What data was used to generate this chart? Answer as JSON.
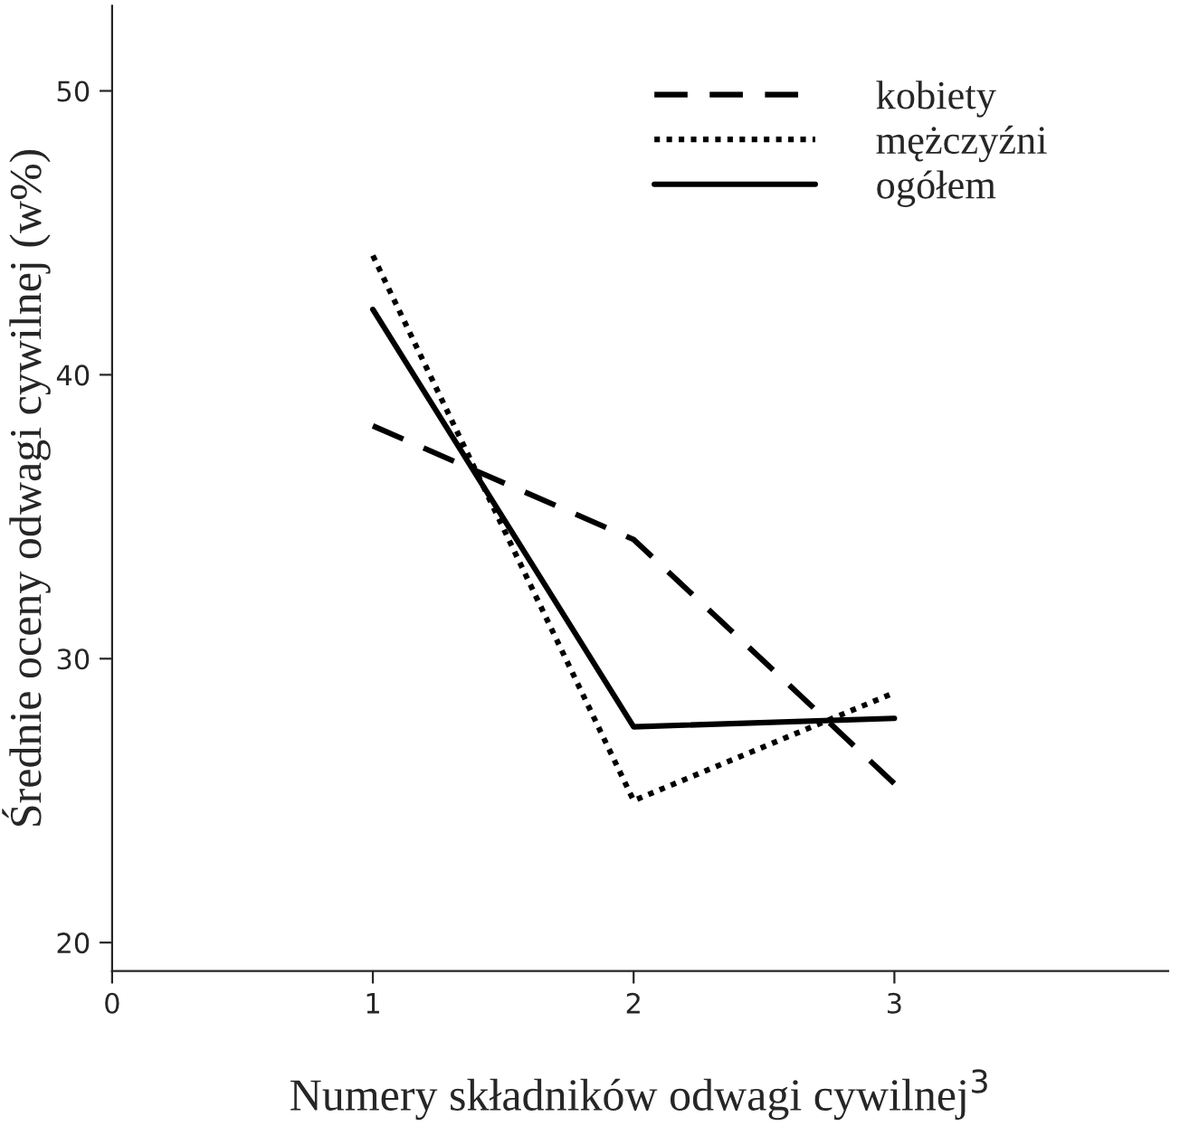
{
  "chart_data": {
    "type": "line",
    "xlabel": "Numery składników odwagi cywilnej$^{3}$",
    "ylabel": "Średnie oceny odwagi cywilnej (w%)",
    "x": [
      1,
      2,
      3
    ],
    "series": [
      {
        "name": "kobiety",
        "color": "#000000",
        "line_style": "dashed",
        "values": [
          38.2,
          34.2,
          25.6
        ]
      },
      {
        "name": "mężczyźni",
        "color": "#000000",
        "line_style": "dotted",
        "values": [
          44.2,
          25.0,
          28.8
        ]
      },
      {
        "name": "ogółem",
        "color": "#000000",
        "line_style": "solid",
        "values": [
          42.3,
          27.6,
          27.9
        ]
      }
    ],
    "xlim": [
      0,
      4.05
    ],
    "xticks": [
      0,
      1,
      2,
      3
    ],
    "ylim": [
      19,
      53
    ],
    "yticks": [
      20,
      30,
      40,
      50
    ],
    "grid": false,
    "legend": "top right",
    "marker": "none"
  }
}
